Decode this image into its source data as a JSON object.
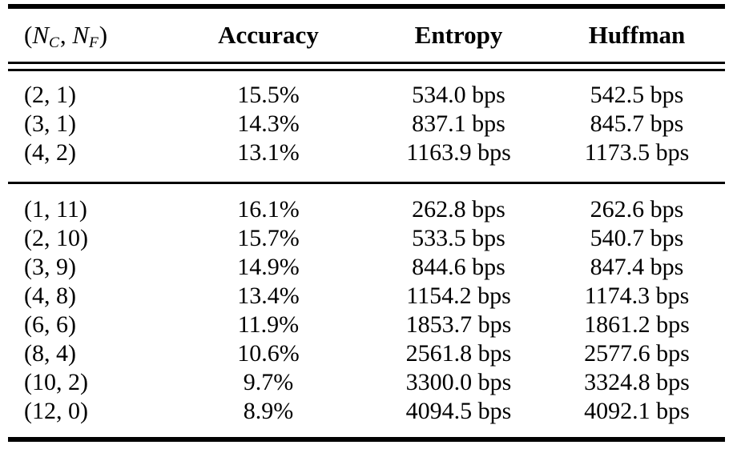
{
  "page": {
    "background": "#ffffff",
    "text_color": "#000000",
    "rule_color": "#000000"
  },
  "table": {
    "header": {
      "col1": {
        "open": "(",
        "n1": "N",
        "sub1": "C",
        "sep": ", ",
        "n2": "N",
        "sub2": "F",
        "close": ")"
      },
      "accuracy": "Accuracy",
      "entropy": "Entropy",
      "huffman": "Huffman"
    },
    "group1": {
      "rows": [
        {
          "config": "(2, 1)",
          "accuracy": "15.5%",
          "entropy": "534.0 bps",
          "huffman": "542.5 bps"
        },
        {
          "config": "(3, 1)",
          "accuracy": "14.3%",
          "entropy": "837.1 bps",
          "huffman": "845.7 bps"
        },
        {
          "config": "(4, 2)",
          "accuracy": "13.1%",
          "entropy": "1163.9 bps",
          "huffman": "1173.5 bps"
        }
      ]
    },
    "group2": {
      "rows": [
        {
          "config": "(1, 11)",
          "accuracy": "16.1%",
          "entropy": "262.8 bps",
          "huffman": "262.6 bps"
        },
        {
          "config": "(2, 10)",
          "accuracy": "15.7%",
          "entropy": "533.5 bps",
          "huffman": "540.7 bps"
        },
        {
          "config": "(3, 9)",
          "accuracy": "14.9%",
          "entropy": "844.6 bps",
          "huffman": "847.4 bps"
        },
        {
          "config": "(4, 8)",
          "accuracy": "13.4%",
          "entropy": "1154.2 bps",
          "huffman": "1174.3 bps"
        },
        {
          "config": "(6, 6)",
          "accuracy": "11.9%",
          "entropy": "1853.7 bps",
          "huffman": "1861.2 bps"
        },
        {
          "config": "(8, 4)",
          "accuracy": "10.6%",
          "entropy": "2561.8 bps",
          "huffman": "2577.6 bps"
        },
        {
          "config": "(10, 2)",
          "accuracy": "9.7%",
          "entropy": "3300.0 bps",
          "huffman": "3324.8 bps"
        },
        {
          "config": "(12, 0)",
          "accuracy": "8.9%",
          "entropy": "4094.5 bps",
          "huffman": "4092.1 bps"
        }
      ]
    }
  }
}
